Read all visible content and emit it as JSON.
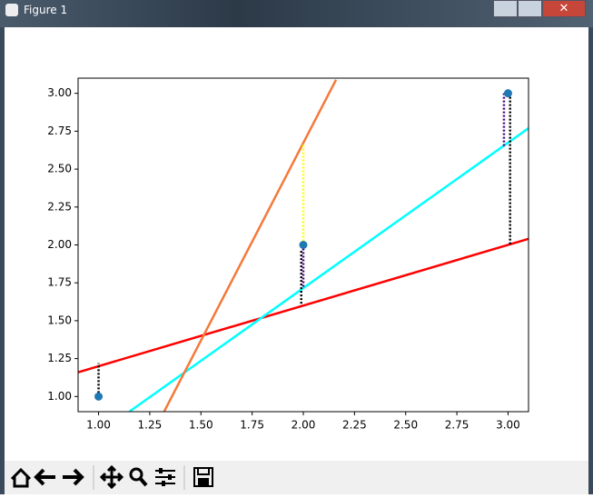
{
  "window": {
    "title": "Figure 1"
  },
  "chart_data": {
    "type": "line",
    "xlim": [
      0.9,
      3.1
    ],
    "ylim": [
      0.9,
      3.1
    ],
    "xticks": [
      {
        "value": 1,
        "label": "1.00"
      },
      {
        "value": 1.25,
        "label": "1.25"
      },
      {
        "value": 1.5,
        "label": "1.50"
      },
      {
        "value": 1.75,
        "label": "1.75"
      },
      {
        "value": 2,
        "label": "2.00"
      },
      {
        "value": 2.25,
        "label": "2.25"
      },
      {
        "value": 2.5,
        "label": "2.50"
      },
      {
        "value": 2.75,
        "label": "2.75"
      },
      {
        "value": 3,
        "label": "3.00"
      }
    ],
    "yticks": [
      {
        "value": 1,
        "label": "1.00"
      },
      {
        "value": 1.25,
        "label": "1.25"
      },
      {
        "value": 1.5,
        "label": "1.50"
      },
      {
        "value": 1.75,
        "label": "1.75"
      },
      {
        "value": 2,
        "label": "2.00"
      },
      {
        "value": 2.25,
        "label": "2.25"
      },
      {
        "value": 2.5,
        "label": "2.50"
      },
      {
        "value": 2.75,
        "label": "2.75"
      },
      {
        "value": 3,
        "label": "3.00"
      }
    ],
    "series": [
      {
        "color": "#ff0000",
        "x": [
          0.9,
          3.1
        ],
        "values": [
          1.16,
          2.04
        ]
      },
      {
        "color": "#00ffff",
        "x": [
          1.15,
          3.1
        ],
        "values": [
          0.9,
          2.77
        ]
      },
      {
        "color": "#f5793a",
        "x": [
          1.32,
          2.16
        ],
        "values": [
          0.9,
          3.09
        ]
      }
    ],
    "points": {
      "color": "#1f77b4",
      "x": [
        1,
        2,
        3
      ],
      "values": [
        1,
        2,
        3
      ]
    },
    "segments": [
      {
        "color": "#000000",
        "x": 1,
        "values": [
          1,
          1.22
        ]
      },
      {
        "color": "#ffff00",
        "x": 2,
        "values": [
          2,
          2.67
        ]
      },
      {
        "color": "#4b0082",
        "x": 2,
        "values": [
          2,
          1.72
        ]
      },
      {
        "color": "#000000",
        "x": 1.99,
        "values": [
          1.96,
          1.6
        ]
      },
      {
        "color": "#4b0082",
        "x": 2.98,
        "values": [
          3,
          2.65
        ]
      },
      {
        "color": "#000000",
        "x": 3.01,
        "values": [
          3,
          2.0
        ]
      }
    ]
  }
}
